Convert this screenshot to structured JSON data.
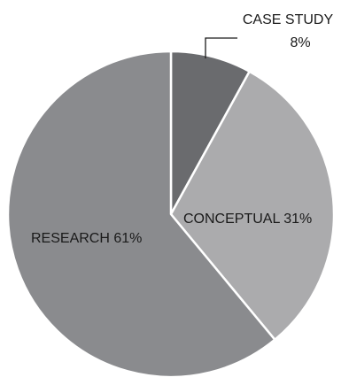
{
  "chart_data": {
    "type": "pie",
    "slices": [
      {
        "label": "CASE STUDY",
        "value": 8,
        "value_text": "8%",
        "color": "#6a6b6e"
      },
      {
        "label": "CONCEPTUAL",
        "value": 31,
        "value_text": "31%",
        "color": "#ababad"
      },
      {
        "label": "RESEARCH",
        "value": 61,
        "value_text": "61%",
        "color": "#8a8b8e"
      }
    ],
    "start_angle": "12 o'clock",
    "direction": "clockwise",
    "legend": "none"
  }
}
